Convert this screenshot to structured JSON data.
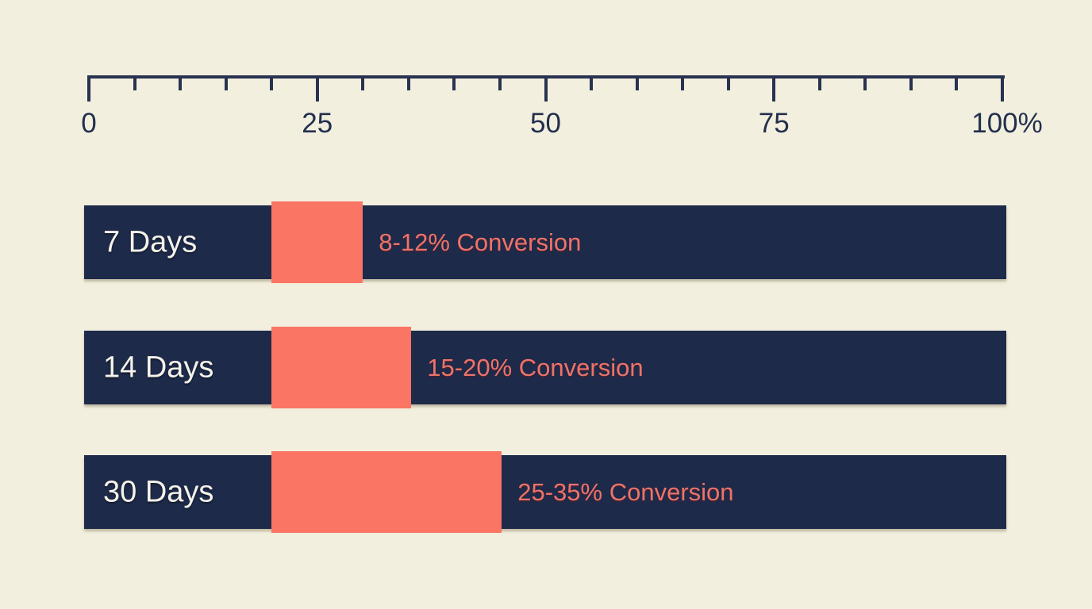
{
  "chart_data": {
    "type": "bar",
    "title": "",
    "xlabel": "",
    "ylabel": "",
    "axis": {
      "min": 0,
      "max": 100,
      "minor_step": 5,
      "major_step": 25,
      "major_ticks": [
        {
          "value": 0,
          "label": "0"
        },
        {
          "value": 25,
          "label": "25"
        },
        {
          "value": 50,
          "label": "50"
        },
        {
          "value": 75,
          "label": "75"
        },
        {
          "value": 100,
          "label": "100%"
        }
      ]
    },
    "rows": [
      {
        "label": "7 Days",
        "conversion_label": "8-12% Conversion",
        "segment_start": 20,
        "segment_end": 30
      },
      {
        "label": "14 Days",
        "conversion_label": "15-20% Conversion",
        "segment_start": 20,
        "segment_end": 35.3
      },
      {
        "label": "30 Days",
        "conversion_label": "25-35% Conversion",
        "segment_start": 20,
        "segment_end": 45.2
      }
    ],
    "colors": {
      "background": "#f3efdf",
      "bar": "#1d2a4a",
      "segment": "#fa7563",
      "conversion_text": "#ee7368",
      "row_label_text": "#f5f2ea",
      "axis": "#27334f"
    },
    "legend": "none",
    "grid": false
  }
}
